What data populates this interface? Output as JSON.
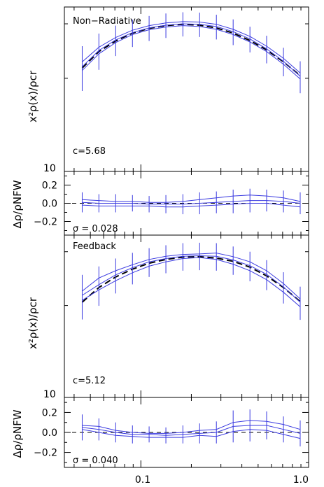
{
  "colors": {
    "curve": "#3a3ae0",
    "title": "#ff3030",
    "axis": "#000000"
  },
  "chart_data": [
    {
      "type": "line",
      "title": "Non−Radiative",
      "ylabel": "x²ρ(x)/ρcr",
      "xscale": "log",
      "yscale": "log",
      "xlim": [
        0.035,
        1.0
      ],
      "ylim": [
        10,
        34
      ],
      "y_tick_labels": [
        "10"
      ],
      "annotation": "c=5.68",
      "x": [
        0.0447,
        0.0562,
        0.0708,
        0.0891,
        0.112,
        0.141,
        0.178,
        0.224,
        0.282,
        0.355,
        0.447,
        0.562,
        0.708,
        0.891
      ],
      "series": [
        {
          "style": "dashed",
          "values": [
            21.6,
            24.4,
            26.4,
            28.0,
            29.0,
            29.6,
            29.9,
            29.7,
            29.1,
            28.0,
            26.5,
            24.7,
            22.6,
            20.4
          ]
        },
        {
          "style": "upper",
          "values": [
            22.6,
            25.2,
            27.1,
            28.6,
            29.6,
            30.2,
            30.5,
            30.4,
            29.9,
            28.8,
            27.3,
            25.4,
            23.2,
            20.8
          ]
        },
        {
          "style": "center",
          "values": [
            21.8,
            24.6,
            26.6,
            28.1,
            29.1,
            29.7,
            30.0,
            29.9,
            29.4,
            28.3,
            26.8,
            24.9,
            22.7,
            20.3
          ]
        },
        {
          "style": "lower",
          "values": [
            21.2,
            24.0,
            26.1,
            27.7,
            28.7,
            29.3,
            29.6,
            29.4,
            28.8,
            27.7,
            26.2,
            24.4,
            22.2,
            19.9
          ]
        }
      ],
      "errors": [
        2.4,
        2.2,
        2.0,
        1.9,
        1.8,
        1.8,
        1.8,
        1.8,
        1.8,
        1.8,
        1.7,
        1.7,
        1.6,
        1.6
      ]
    },
    {
      "type": "line",
      "ylabel": "Δρ/ρNFW",
      "xscale": "log",
      "xlim": [
        0.035,
        1.0
      ],
      "ylim": [
        -0.35,
        0.35
      ],
      "y_ticks": [
        -0.2,
        0.0,
        0.2
      ],
      "y_tick_labels": [
        "−0.2",
        "0.0",
        "0.2"
      ],
      "annotation": "σ  = 0.028",
      "x": [
        0.0447,
        0.0562,
        0.0708,
        0.0891,
        0.112,
        0.141,
        0.178,
        0.224,
        0.282,
        0.355,
        0.447,
        0.562,
        0.708,
        0.891
      ],
      "series": [
        {
          "style": "upper",
          "values": [
            0.04,
            0.03,
            0.02,
            0.02,
            0.01,
            0.01,
            0.02,
            0.04,
            0.06,
            0.08,
            0.09,
            0.08,
            0.06,
            0.02
          ]
        },
        {
          "style": "center",
          "values": [
            0.01,
            0.0,
            0.0,
            0.0,
            -0.01,
            -0.01,
            -0.01,
            0.0,
            0.01,
            0.02,
            0.03,
            0.03,
            0.02,
            0.0
          ]
        },
        {
          "style": "lower",
          "values": [
            -0.02,
            -0.03,
            -0.03,
            -0.03,
            -0.03,
            -0.04,
            -0.04,
            -0.03,
            -0.02,
            -0.01,
            0.0,
            0.0,
            -0.02,
            -0.04
          ]
        }
      ],
      "errors": [
        0.11,
        0.1,
        0.1,
        0.09,
        0.09,
        0.1,
        0.11,
        0.12,
        0.12,
        0.13,
        0.13,
        0.12,
        0.12,
        0.12
      ]
    },
    {
      "type": "line",
      "title": "Feedback",
      "ylabel": "x²ρ(x)/ρcr",
      "xscale": "log",
      "yscale": "log",
      "xlim": [
        0.035,
        1.0
      ],
      "ylim": [
        10,
        34
      ],
      "y_tick_labels": [
        "10"
      ],
      "annotation": "c=5.12",
      "x": [
        0.0447,
        0.0562,
        0.0708,
        0.0891,
        0.112,
        0.141,
        0.178,
        0.224,
        0.282,
        0.355,
        0.447,
        0.562,
        0.708,
        0.891
      ],
      "series": [
        {
          "style": "dashed",
          "values": [
            20.5,
            22.9,
            24.8,
            26.3,
            27.5,
            28.3,
            28.8,
            28.9,
            28.6,
            27.9,
            26.7,
            25.0,
            22.9,
            20.6
          ]
        },
        {
          "style": "upper",
          "values": [
            22.3,
            24.6,
            26.0,
            27.2,
            28.3,
            29.0,
            29.4,
            29.5,
            29.7,
            28.9,
            27.8,
            26.0,
            23.6,
            21.0
          ]
        },
        {
          "style": "center",
          "values": [
            21.6,
            23.4,
            25.2,
            26.6,
            27.8,
            28.5,
            29.0,
            29.1,
            29.0,
            28.2,
            27.0,
            25.3,
            23.0,
            20.5
          ]
        },
        {
          "style": "lower",
          "values": [
            20.8,
            22.5,
            24.1,
            25.6,
            26.9,
            27.8,
            28.5,
            28.7,
            28.3,
            27.3,
            26.0,
            24.3,
            22.1,
            19.8
          ]
        }
      ],
      "errors": [
        2.4,
        2.3,
        2.2,
        2.1,
        2.0,
        2.0,
        2.0,
        2.0,
        2.0,
        2.0,
        2.0,
        1.9,
        1.8,
        1.7
      ]
    },
    {
      "type": "line",
      "ylabel": "Δρ/ρNFW",
      "xlabel": "",
      "xscale": "log",
      "xlim": [
        0.035,
        1.0
      ],
      "ylim": [
        -0.35,
        0.35
      ],
      "y_ticks": [
        -0.2,
        0.0,
        0.2
      ],
      "y_tick_labels": [
        "−0.2",
        "0.0",
        "0.2"
      ],
      "x_ticks": [
        0.1,
        1.0
      ],
      "x_tick_labels": [
        "0.1",
        "1.0"
      ],
      "annotation": "σ  = 0.040",
      "x": [
        0.0447,
        0.0562,
        0.0708,
        0.0891,
        0.112,
        0.141,
        0.178,
        0.224,
        0.282,
        0.355,
        0.447,
        0.562,
        0.708,
        0.891
      ],
      "series": [
        {
          "style": "upper",
          "values": [
            0.07,
            0.06,
            0.02,
            0.0,
            -0.01,
            -0.01,
            0.0,
            0.02,
            0.03,
            0.1,
            0.12,
            0.11,
            0.08,
            0.03
          ]
        },
        {
          "style": "center",
          "values": [
            0.05,
            0.03,
            0.0,
            -0.02,
            -0.02,
            -0.03,
            -0.02,
            -0.01,
            0.0,
            0.06,
            0.07,
            0.07,
            0.03,
            -0.01
          ]
        },
        {
          "style": "lower",
          "values": [
            0.03,
            0.0,
            -0.03,
            -0.04,
            -0.05,
            -0.05,
            -0.05,
            -0.03,
            -0.04,
            0.01,
            0.03,
            0.02,
            -0.02,
            -0.06
          ]
        }
      ],
      "errors": [
        0.13,
        0.11,
        0.1,
        0.09,
        0.08,
        0.08,
        0.09,
        0.1,
        0.11,
        0.16,
        0.16,
        0.14,
        0.13,
        0.13
      ]
    }
  ]
}
